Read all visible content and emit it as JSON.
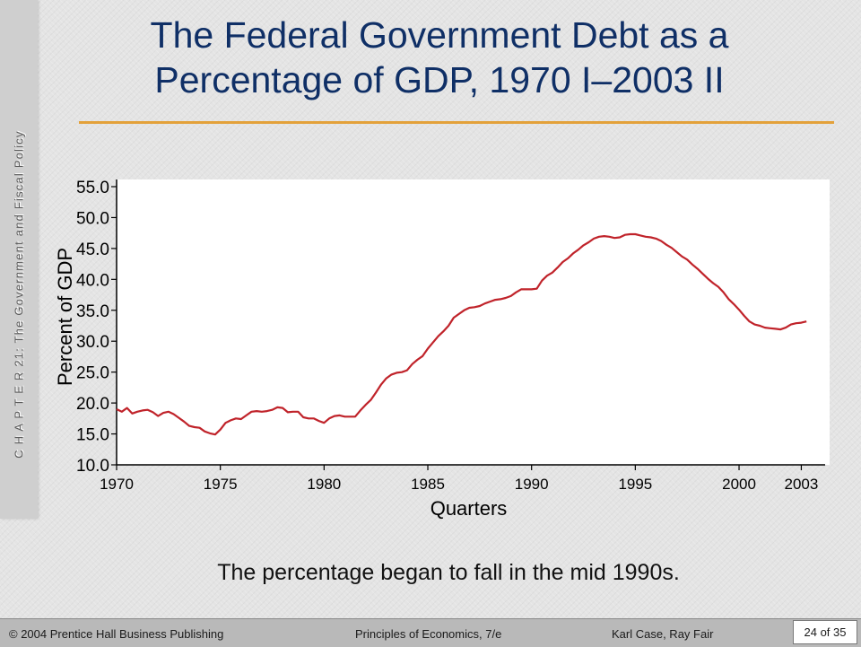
{
  "side_label": "C H A P T E R  21: The Government and Fiscal Policy",
  "title_line1": "The Federal Government Debt as a",
  "title_line2": "Percentage of GDP, 1970 I–2003 II",
  "caption": "The percentage began to fall in the mid 1990s.",
  "footer": {
    "left": "© 2004 Prentice Hall Business Publishing",
    "middle": "Principles of Economics, 7/e",
    "right": "Karl Case, Ray Fair",
    "page": "24 of 35"
  },
  "colors": {
    "title": "#0f2f66",
    "rule": "#e3a13a",
    "line": "#c0232a",
    "chart_bg": "#ffffff"
  },
  "chart_data": {
    "type": "line",
    "xlabel": "Quarters",
    "ylabel": "Percent of GDP",
    "ylim": [
      10.0,
      55.0
    ],
    "xlim": [
      1970,
      2003.5
    ],
    "y_ticks": [
      "10.0",
      "15.0",
      "20.0",
      "25.0",
      "30.0",
      "35.0",
      "40.0",
      "45.0",
      "50.0",
      "55.0"
    ],
    "x_ticks": [
      "1970",
      "1975",
      "1980",
      "1985",
      "1990",
      "1995",
      "2000",
      "2003"
    ],
    "grid": false,
    "series": [
      {
        "x": [
          1970.0,
          1970.25,
          1970.5,
          1970.75,
          1971.0,
          1971.25,
          1971.5,
          1971.75,
          1972.0,
          1972.25,
          1972.5,
          1972.75,
          1973.0,
          1973.25,
          1973.5,
          1973.75,
          1974.0,
          1974.25,
          1974.5,
          1974.75,
          1975.0,
          1975.25,
          1975.5,
          1975.75,
          1976.0,
          1976.25,
          1976.5,
          1976.75,
          1977.0,
          1977.25,
          1977.5,
          1977.75,
          1978.0,
          1978.25,
          1978.5,
          1978.75,
          1979.0,
          1979.25,
          1979.5,
          1979.75,
          1980.0,
          1980.25,
          1980.5,
          1980.75,
          1981.0,
          1981.25,
          1981.5,
          1981.75,
          1982.0,
          1982.25,
          1982.5,
          1982.75,
          1983.0,
          1983.25,
          1983.5,
          1983.75,
          1984.0,
          1984.25,
          1984.5,
          1984.75,
          1985.0,
          1985.25,
          1985.5,
          1985.75,
          1986.0,
          1986.25,
          1986.5,
          1986.75,
          1987.0,
          1987.25,
          1987.5,
          1987.75,
          1988.0,
          1988.25,
          1988.5,
          1988.75,
          1989.0,
          1989.25,
          1989.5,
          1989.75,
          1990.0,
          1990.25,
          1990.5,
          1990.75,
          1991.0,
          1991.25,
          1991.5,
          1991.75,
          1992.0,
          1992.25,
          1992.5,
          1992.75,
          1993.0,
          1993.25,
          1993.5,
          1993.75,
          1994.0,
          1994.25,
          1994.5,
          1994.75,
          1995.0,
          1995.25,
          1995.5,
          1995.75,
          1996.0,
          1996.25,
          1996.5,
          1996.75,
          1997.0,
          1997.25,
          1997.5,
          1997.75,
          1998.0,
          1998.25,
          1998.5,
          1998.75,
          1999.0,
          1999.25,
          1999.5,
          1999.75,
          2000.0,
          2000.25,
          2000.5,
          2000.75,
          2001.0,
          2001.25,
          2001.5,
          2001.75,
          2002.0,
          2002.25,
          2002.5,
          2002.75,
          2003.0,
          2003.25
        ],
        "y": [
          19.0,
          18.6,
          19.2,
          18.3,
          18.6,
          18.8,
          18.9,
          18.5,
          17.9,
          18.4,
          18.6,
          18.2,
          17.6,
          17.0,
          16.3,
          16.1,
          16.0,
          15.4,
          15.1,
          14.9,
          15.7,
          16.8,
          17.2,
          17.5,
          17.4,
          18.0,
          18.6,
          18.7,
          18.6,
          18.7,
          18.9,
          19.3,
          19.2,
          18.5,
          18.6,
          18.6,
          17.7,
          17.5,
          17.5,
          17.1,
          16.8,
          17.5,
          17.9,
          18.0,
          17.8,
          17.8,
          17.8,
          18.8,
          19.7,
          20.5,
          21.7,
          23.0,
          24.0,
          24.6,
          24.9,
          25.0,
          25.3,
          26.3,
          27.0,
          27.6,
          28.8,
          29.8,
          30.8,
          31.6,
          32.5,
          33.8,
          34.4,
          35.0,
          35.4,
          35.5,
          35.7,
          36.1,
          36.4,
          36.7,
          36.8,
          37.0,
          37.3,
          37.9,
          38.4,
          38.4,
          38.4,
          38.5,
          39.8,
          40.6,
          41.1,
          41.9,
          42.8,
          43.4,
          44.2,
          44.8,
          45.5,
          46.0,
          46.6,
          46.9,
          47.0,
          46.9,
          46.7,
          46.8,
          47.2,
          47.3,
          47.3,
          47.1,
          46.9,
          46.8,
          46.6,
          46.2,
          45.6,
          45.1,
          44.4,
          43.7,
          43.2,
          42.4,
          41.7,
          40.9,
          40.1,
          39.4,
          38.8,
          37.9,
          36.8,
          36.0,
          35.1,
          34.1,
          33.2,
          32.7,
          32.5,
          32.2,
          32.1,
          32.0,
          31.9,
          32.2,
          32.7,
          32.9,
          33.0,
          33.2
        ]
      }
    ]
  }
}
